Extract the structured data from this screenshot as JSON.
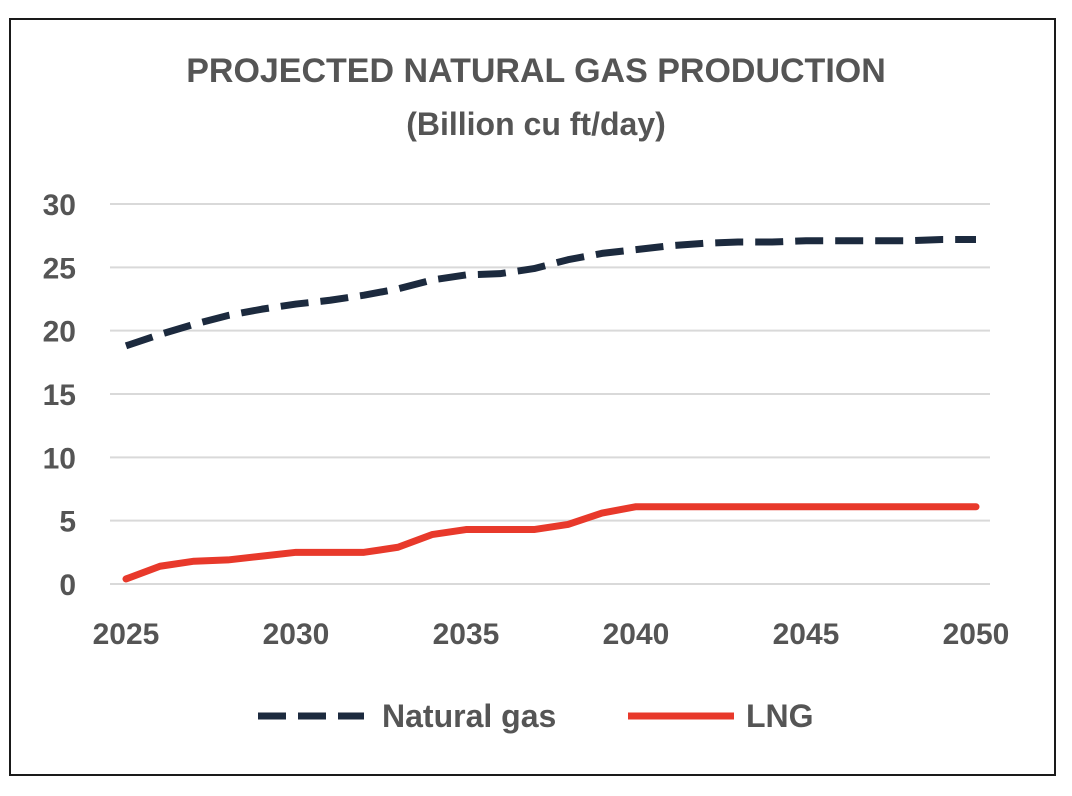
{
  "chart_data": {
    "type": "line",
    "title": "PROJECTED NATURAL GAS PRODUCTION",
    "subtitle": "(Billion cu ft/day)",
    "xlabel": "",
    "ylabel": "",
    "x": [
      2025,
      2026,
      2027,
      2028,
      2029,
      2030,
      2031,
      2032,
      2033,
      2034,
      2035,
      2036,
      2037,
      2038,
      2039,
      2040,
      2041,
      2042,
      2043,
      2044,
      2045,
      2046,
      2047,
      2048,
      2049,
      2050
    ],
    "x_ticks": [
      "2025",
      "2030",
      "2035",
      "2040",
      "2045",
      "2050"
    ],
    "y_ticks": [
      "0",
      "5",
      "10",
      "15",
      "20",
      "25",
      "30"
    ],
    "xlim": [
      2025,
      2050
    ],
    "ylim": [
      0,
      30
    ],
    "grid": "horizontal",
    "legend_position": "bottom",
    "series": [
      {
        "name": "Natural gas",
        "color": "#1c2a3e",
        "style": "dashed",
        "values": [
          18.8,
          19.7,
          20.5,
          21.2,
          21.7,
          22.1,
          22.4,
          22.8,
          23.3,
          24.0,
          24.4,
          24.5,
          24.9,
          25.6,
          26.1,
          26.4,
          26.7,
          26.9,
          27.0,
          27.0,
          27.1,
          27.1,
          27.1,
          27.1,
          27.2,
          27.2
        ]
      },
      {
        "name": "LNG",
        "color": "#e8392b",
        "style": "solid",
        "values": [
          0.4,
          1.4,
          1.8,
          1.9,
          2.2,
          2.5,
          2.5,
          2.5,
          2.9,
          3.9,
          4.3,
          4.3,
          4.3,
          4.7,
          5.6,
          6.1,
          6.1,
          6.1,
          6.1,
          6.1,
          6.1,
          6.1,
          6.1,
          6.1,
          6.1,
          6.1
        ]
      }
    ]
  }
}
